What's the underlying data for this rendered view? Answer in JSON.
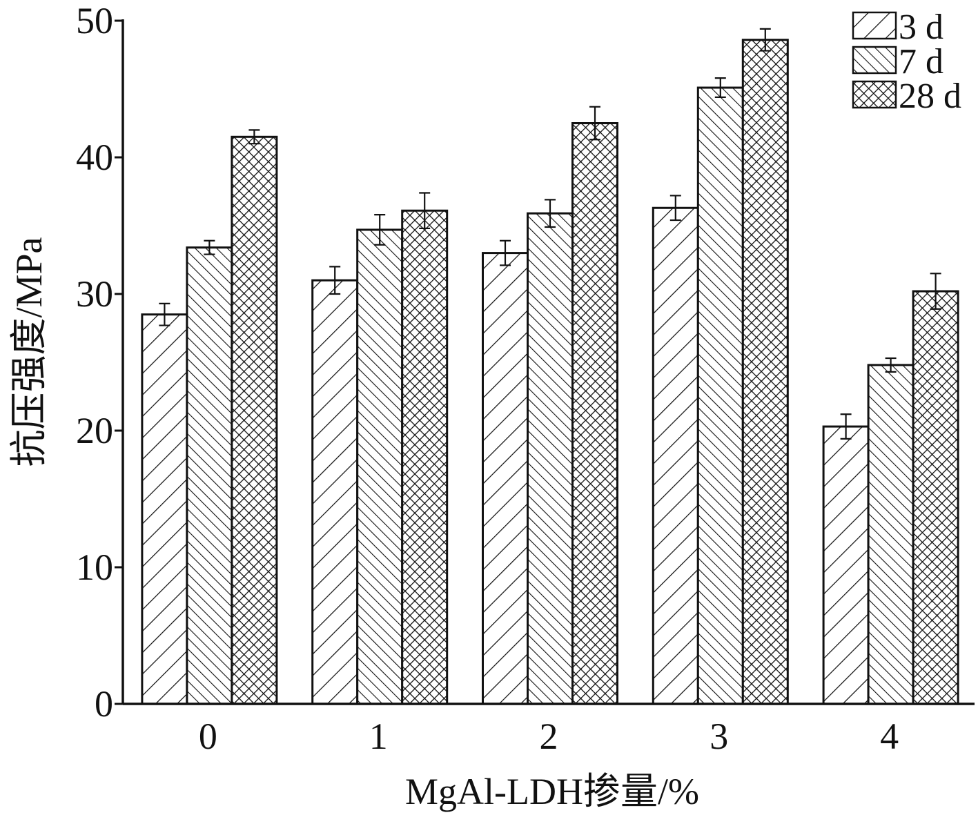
{
  "chart_data": {
    "type": "bar",
    "title": "",
    "xlabel": "MgAl-LDH掺量/%",
    "ylabel": "抗压强度/MPa",
    "categories": [
      "0",
      "1",
      "2",
      "3",
      "4"
    ],
    "ylim": [
      0,
      50
    ],
    "yticks": [
      "0",
      "10",
      "20",
      "30",
      "40",
      "50"
    ],
    "grid": false,
    "legend_position": "top-right",
    "series": [
      {
        "name": "3 d",
        "pattern": "diagonal-forward",
        "values": [
          28.5,
          31.0,
          33.0,
          36.3,
          20.3
        ],
        "errors": [
          0.8,
          1.0,
          0.9,
          0.9,
          0.9
        ]
      },
      {
        "name": "7 d",
        "pattern": "diagonal-backward",
        "values": [
          33.4,
          34.7,
          35.9,
          45.1,
          24.8
        ],
        "errors": [
          0.5,
          1.1,
          1.0,
          0.7,
          0.5
        ]
      },
      {
        "name": "28 d",
        "pattern": "crosshatch",
        "values": [
          41.5,
          36.1,
          42.5,
          48.6,
          30.2
        ],
        "errors": [
          0.5,
          1.3,
          1.2,
          0.8,
          1.3
        ]
      }
    ],
    "colors": {
      "stroke": "#111111",
      "fill": "#ffffff"
    }
  }
}
